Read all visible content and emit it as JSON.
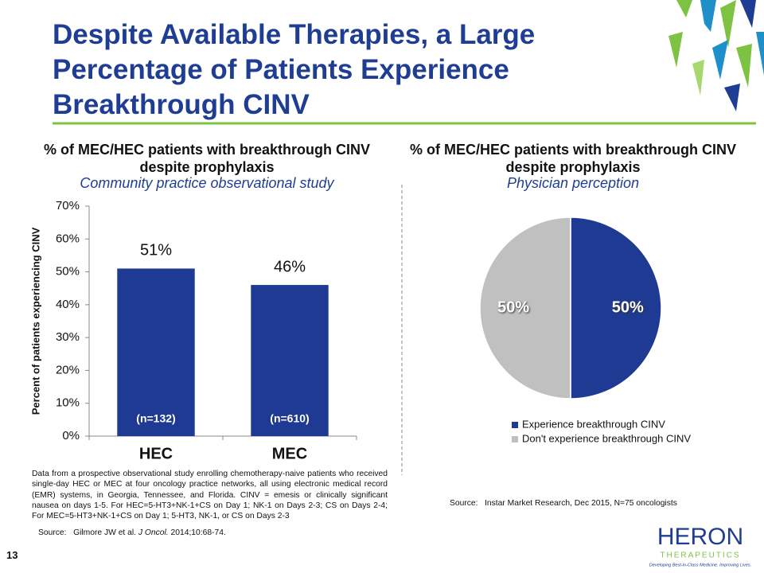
{
  "slide": {
    "title": "Despite Available Therapies, a Large Percentage of Patients Experience Breakthrough CINV",
    "description": "Data from a prospective observational study enrolling chemotherapy-naive patients who received single-day HEC or MEC at four oncology practice networks, all using electronic medical record (EMR) systems, in Georgia, Tennessee, and Florida.  CINV = emesis or clinically significant nausea on days 1-5.  For HEC=5-HT3+NK-1+CS on Day 1; NK-1 on Days 2-3; CS on Days 2-4; For MEC=5-HT3+NK-1+CS on Day 1; 5-HT3, NK-1, or CS on Days 2-3",
    "source_left": {
      "prefix": "Source:   Gilmore JW et al. ",
      "journal": "J Oncol.",
      "citation": " 2014;10:68-74."
    },
    "source_right": "Source:   Instar Market Research, Dec 2015, N=75 oncologists",
    "page_number": "13",
    "logo": {
      "name": "HERON",
      "sub": "THERAPEUTICS",
      "tagline": "Developing Best-in-Class Medicine. Improving Lives."
    }
  },
  "chart_data": [
    {
      "type": "bar",
      "title": "% of MEC/HEC patients with breakthrough CINV despite prophylaxis",
      "subtitle": "Community practice observational study",
      "y_label": "Percent of patients experiencing CINV",
      "categories": [
        "HEC",
        "MEC"
      ],
      "values": [
        51,
        46
      ],
      "value_labels": [
        "51%",
        "46%"
      ],
      "annotations": [
        "(n=132)",
        "(n=610)"
      ],
      "color": "#1f3a93",
      "ylim": [
        0,
        70
      ],
      "yticks": [
        {
          "value": 0,
          "label": "0%"
        },
        {
          "value": 10,
          "label": "10%"
        },
        {
          "value": 20,
          "label": "20%"
        },
        {
          "value": 30,
          "label": "30%"
        },
        {
          "value": 40,
          "label": "40%"
        },
        {
          "value": 50,
          "label": "50%"
        },
        {
          "value": 60,
          "label": "60%"
        },
        {
          "value": 70,
          "label": "70%"
        }
      ]
    },
    {
      "type": "pie",
      "title": "% of MEC/HEC patients with breakthrough CINV despite prophylaxis",
      "subtitle": "Physician perception",
      "categories": [
        "Experience breakthrough CINV",
        "Don't experience breakthrough CINV"
      ],
      "values": [
        50,
        50
      ],
      "value_labels": [
        "50%",
        "50%"
      ],
      "colors": [
        "#1f3a93",
        "#c0c0c0"
      ],
      "legend": "bottom"
    }
  ]
}
